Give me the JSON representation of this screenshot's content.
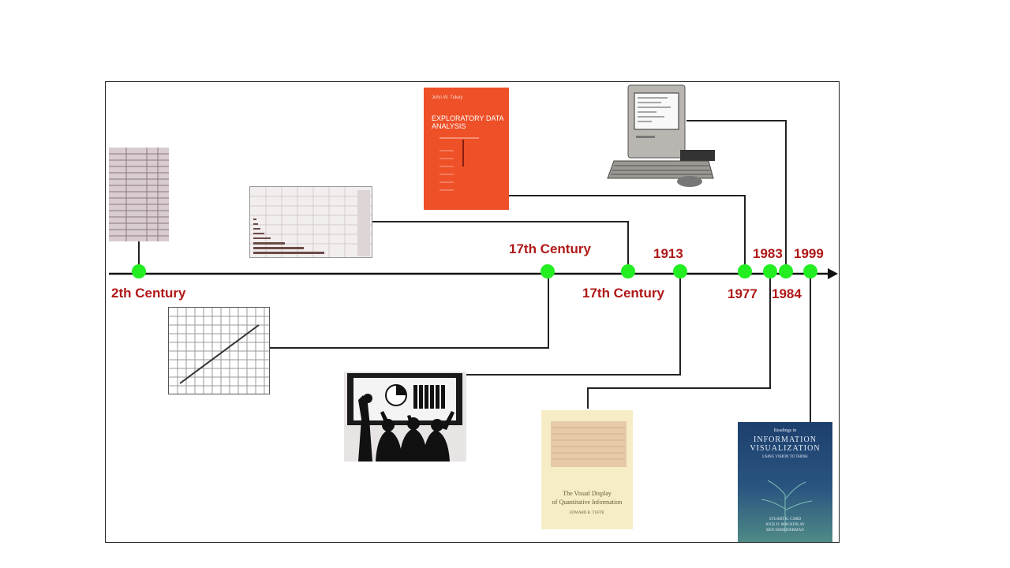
{
  "timeline": {
    "labels": [
      {
        "id": "2c",
        "text": "2th Century"
      },
      {
        "id": "17a",
        "text": "17th Century"
      },
      {
        "id": "17b",
        "text": "17th Century"
      },
      {
        "id": "1913",
        "text": "1913"
      },
      {
        "id": "1977",
        "text": "1977"
      },
      {
        "id": "1983",
        "text": "1983"
      },
      {
        "id": "1984",
        "text": "1984"
      },
      {
        "id": "1999",
        "text": "1999"
      }
    ]
  },
  "images": {
    "eda_book": {
      "line1": "John W. Tukey",
      "line2": "EXPLORATORY DATA",
      "line3": "ANALYSIS"
    },
    "tufte_book": {
      "line1": "The Visual Display",
      "line2": "of Quantitative Information",
      "line3": "EDWARD R. TUFTE"
    },
    "infovis_book": {
      "line1": "Readings in",
      "line2": "INFORMATION",
      "line3": "VISUALIZATION",
      "line4": "USING VISION TO THINK",
      "line5": "STUART K. CARD",
      "line6": "JOCK D. MACKINLAY",
      "line7": "BEN SHNEIDERMAN"
    }
  },
  "colors": {
    "label": "#b01818",
    "milestone": "#22ee22",
    "line": "#111111",
    "eda_cover": "#ee5028",
    "infovis_cover": "#1d3f6e"
  }
}
